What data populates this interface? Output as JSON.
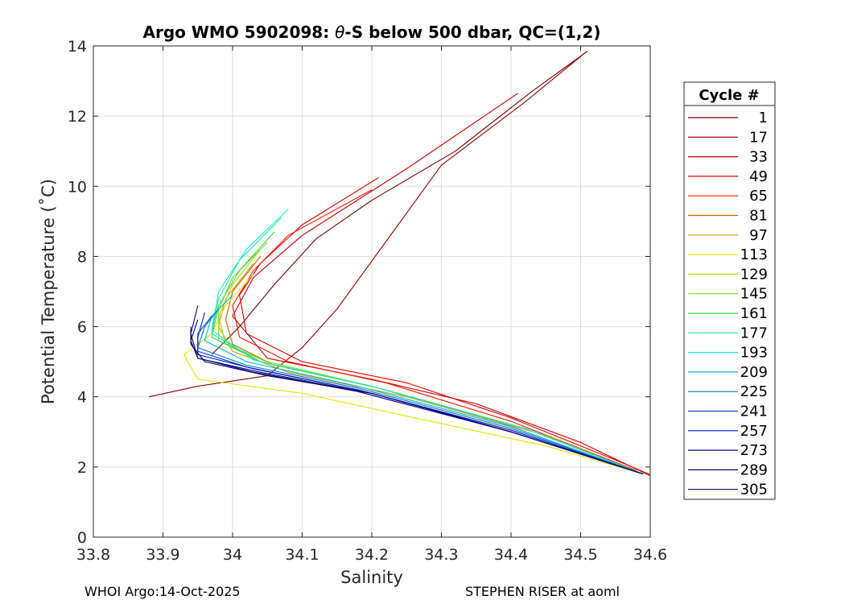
{
  "chart_data": {
    "type": "line",
    "title_prefix": "Argo WMO 5902098: ",
    "title_theta": "θ",
    "title_suffix": "-S below 500 dbar,  QC=(1,2)",
    "xlabel": "Salinity",
    "ylabel": "Potential Temperature (˚C)",
    "xlim": [
      33.8,
      34.6
    ],
    "ylim": [
      0,
      14
    ],
    "xticks": [
      33.8,
      33.9,
      34.0,
      34.1,
      34.2,
      34.3,
      34.4,
      34.5,
      34.6
    ],
    "xtick_labels": [
      "33.8",
      "33.9",
      "34",
      "34.1",
      "34.2",
      "34.3",
      "34.4",
      "34.5",
      "34.6"
    ],
    "yticks": [
      0,
      2,
      4,
      6,
      8,
      10,
      12,
      14
    ],
    "ytick_labels": [
      "0",
      "2",
      "4",
      "6",
      "8",
      "10",
      "12",
      "14"
    ],
    "grid": true,
    "legend_title": "Cycle #",
    "legend_position": "outside-right",
    "series": [
      {
        "name": "1",
        "color": "#6e0000",
        "points": [
          [
            34.51,
            13.85
          ],
          [
            34.43,
            12.7
          ],
          [
            34.32,
            11.0
          ],
          [
            34.2,
            9.6
          ],
          [
            34.12,
            8.5
          ],
          [
            34.06,
            7.2
          ],
          [
            34.01,
            6.0
          ],
          [
            33.97,
            5.2
          ]
        ]
      },
      {
        "name": "17",
        "color": "#8a0000",
        "points": [
          [
            34.5,
            13.7
          ],
          [
            34.42,
            12.4
          ],
          [
            34.3,
            10.6
          ],
          [
            34.15,
            6.5
          ],
          [
            34.1,
            5.4
          ],
          [
            34.05,
            4.6
          ],
          [
            33.95,
            4.3
          ],
          [
            33.88,
            4.0
          ]
        ]
      },
      {
        "name": "33",
        "color": "#c00000",
        "points": [
          [
            34.41,
            12.65
          ],
          [
            34.25,
            10.5
          ],
          [
            34.1,
            8.6
          ],
          [
            34.03,
            7.4
          ],
          [
            34.0,
            6.3
          ],
          [
            34.05,
            5.1
          ],
          [
            34.2,
            4.5
          ],
          [
            34.35,
            3.8
          ],
          [
            34.5,
            2.7
          ],
          [
            34.6,
            1.75
          ]
        ]
      },
      {
        "name": "49",
        "color": "#dc0000",
        "points": [
          [
            34.21,
            10.25
          ],
          [
            34.1,
            8.9
          ],
          [
            34.04,
            7.8
          ],
          [
            34.01,
            6.9
          ],
          [
            34.02,
            5.8
          ],
          [
            34.1,
            5.0
          ],
          [
            34.25,
            4.4
          ],
          [
            34.4,
            3.4
          ],
          [
            34.55,
            2.2
          ],
          [
            34.6,
            1.78
          ]
        ]
      },
      {
        "name": "65",
        "color": "#f01800",
        "points": [
          [
            34.2,
            9.9
          ],
          [
            34.08,
            8.6
          ],
          [
            34.03,
            7.6
          ],
          [
            34.0,
            6.6
          ],
          [
            34.01,
            5.7
          ],
          [
            34.08,
            5.0
          ],
          [
            34.22,
            4.4
          ],
          [
            34.4,
            3.3
          ],
          [
            34.58,
            1.9
          ]
        ]
      },
      {
        "name": "81",
        "color": "#c86400",
        "points": [
          [
            34.04,
            8.0
          ],
          [
            34.0,
            7.0
          ],
          [
            33.99,
            6.2
          ],
          [
            34.0,
            5.5
          ],
          [
            34.06,
            4.9
          ],
          [
            34.2,
            4.3
          ],
          [
            34.38,
            3.3
          ],
          [
            34.58,
            1.85
          ]
        ]
      },
      {
        "name": "97",
        "color": "#d2a000",
        "points": [
          [
            34.03,
            7.8
          ],
          [
            33.99,
            6.8
          ],
          [
            33.98,
            6.0
          ],
          [
            34.0,
            5.3
          ],
          [
            34.08,
            4.7
          ],
          [
            34.25,
            4.0
          ],
          [
            34.45,
            2.9
          ],
          [
            34.59,
            1.8
          ]
        ]
      },
      {
        "name": "113",
        "color": "#e6e600",
        "points": [
          [
            34.03,
            7.5
          ],
          [
            33.99,
            6.6
          ],
          [
            33.97,
            5.8
          ],
          [
            33.93,
            5.2
          ],
          [
            33.95,
            4.5
          ],
          [
            34.1,
            4.1
          ],
          [
            34.25,
            3.45
          ],
          [
            34.45,
            2.6
          ],
          [
            34.59,
            1.8
          ]
        ]
      },
      {
        "name": "129",
        "color": "#aadc00",
        "points": [
          [
            34.04,
            8.2
          ],
          [
            34.0,
            7.2
          ],
          [
            33.98,
            6.3
          ],
          [
            33.99,
            5.5
          ],
          [
            34.06,
            4.9
          ],
          [
            34.22,
            4.2
          ],
          [
            34.42,
            3.1
          ],
          [
            34.59,
            1.8
          ]
        ]
      },
      {
        "name": "145",
        "color": "#78dc14",
        "points": [
          [
            34.05,
            8.4
          ],
          [
            34.0,
            7.4
          ],
          [
            33.98,
            6.5
          ],
          [
            33.98,
            5.6
          ],
          [
            34.05,
            5.0
          ],
          [
            34.2,
            4.3
          ],
          [
            34.42,
            3.1
          ],
          [
            34.59,
            1.8
          ]
        ]
      },
      {
        "name": "161",
        "color": "#32dc3c",
        "points": [
          [
            34.06,
            8.7
          ],
          [
            34.01,
            7.6
          ],
          [
            33.98,
            6.6
          ],
          [
            33.97,
            5.7
          ],
          [
            34.04,
            5.0
          ],
          [
            34.2,
            4.3
          ],
          [
            34.42,
            3.1
          ],
          [
            34.59,
            1.8
          ]
        ]
      },
      {
        "name": "177",
        "color": "#1ee6a0",
        "points": [
          [
            34.07,
            9.1
          ],
          [
            34.01,
            7.9
          ],
          [
            33.98,
            6.8
          ],
          [
            33.97,
            5.8
          ],
          [
            34.04,
            5.0
          ],
          [
            34.2,
            4.3
          ],
          [
            34.42,
            3.1
          ],
          [
            34.59,
            1.8
          ]
        ]
      },
      {
        "name": "193",
        "color": "#14e6dc",
        "points": [
          [
            34.08,
            9.35
          ],
          [
            34.02,
            8.2
          ],
          [
            33.98,
            7.0
          ],
          [
            33.97,
            5.9
          ],
          [
            34.03,
            5.05
          ],
          [
            34.2,
            4.3
          ],
          [
            34.42,
            3.1
          ],
          [
            34.59,
            1.8
          ]
        ]
      },
      {
        "name": "209",
        "color": "#00b4dc",
        "points": [
          [
            34.0,
            6.9
          ],
          [
            33.97,
            6.3
          ],
          [
            33.96,
            5.6
          ],
          [
            34.02,
            5.0
          ],
          [
            34.18,
            4.3
          ],
          [
            34.4,
            3.15
          ],
          [
            34.59,
            1.8
          ]
        ]
      },
      {
        "name": "225",
        "color": "#0078c8",
        "points": [
          [
            33.98,
            6.5
          ],
          [
            33.96,
            6.0
          ],
          [
            33.95,
            5.4
          ],
          [
            34.02,
            4.9
          ],
          [
            34.18,
            4.25
          ],
          [
            34.4,
            3.1
          ],
          [
            34.59,
            1.8
          ]
        ]
      },
      {
        "name": "241",
        "color": "#0046c8",
        "points": [
          [
            33.97,
            6.3
          ],
          [
            33.95,
            5.8
          ],
          [
            33.95,
            5.3
          ],
          [
            34.02,
            4.85
          ],
          [
            34.18,
            4.2
          ],
          [
            34.4,
            3.05
          ],
          [
            34.59,
            1.8
          ]
        ]
      },
      {
        "name": "257",
        "color": "#0014c8",
        "points": [
          [
            33.96,
            6.4
          ],
          [
            33.95,
            5.7
          ],
          [
            33.95,
            5.2
          ],
          [
            34.03,
            4.8
          ],
          [
            34.18,
            4.2
          ],
          [
            34.4,
            3.05
          ],
          [
            34.59,
            1.8
          ]
        ]
      },
      {
        "name": "273",
        "color": "#000096",
        "points": [
          [
            33.95,
            6.6
          ],
          [
            33.94,
            5.8
          ],
          [
            33.95,
            5.1
          ],
          [
            34.03,
            4.7
          ],
          [
            34.18,
            4.15
          ],
          [
            34.4,
            3.0
          ],
          [
            34.59,
            1.8
          ]
        ]
      },
      {
        "name": "289",
        "color": "#00006e",
        "points": [
          [
            33.95,
            6.2
          ],
          [
            33.94,
            5.6
          ],
          [
            33.95,
            5.1
          ],
          [
            34.04,
            4.7
          ],
          [
            34.2,
            4.1
          ],
          [
            34.4,
            3.0
          ],
          [
            34.59,
            1.8
          ]
        ]
      },
      {
        "name": "305",
        "color": "#000064",
        "points": [
          [
            33.94,
            6.0
          ],
          [
            33.94,
            5.5
          ],
          [
            33.96,
            5.0
          ],
          [
            34.05,
            4.6
          ],
          [
            34.2,
            4.1
          ],
          [
            34.4,
            3.0
          ],
          [
            34.59,
            1.8
          ]
        ]
      }
    ]
  },
  "footer": {
    "left": "WHOI Argo:14-Oct-2025",
    "right": "STEPHEN RISER at aoml"
  }
}
